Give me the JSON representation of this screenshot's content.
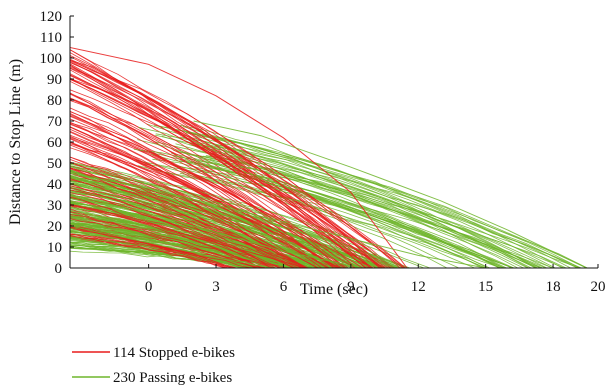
{
  "chart_data": {
    "type": "line",
    "title": "",
    "xlabel": "Time (sec)",
    "ylabel": "Distance to Stop Line (m)",
    "xlim": [
      -3.5,
      20
    ],
    "ylim": [
      0,
      120
    ],
    "xticks": [
      0,
      3,
      6,
      9,
      12,
      15,
      18,
      20
    ],
    "yticks": [
      0,
      10,
      20,
      30,
      40,
      50,
      60,
      70,
      80,
      90,
      100,
      110,
      120
    ],
    "grid": false,
    "legend_position": "bottom",
    "series": [
      {
        "name": "114 Stopped e-bikes",
        "color": "#e81c1c",
        "count": 114,
        "start_y_range": [
          15,
          105
        ],
        "end_x_range": [
          4,
          11.5
        ]
      },
      {
        "name": "230 Passing e-bikes",
        "color": "#6fb52c",
        "count": 230,
        "start_y_range": [
          8,
          70
        ],
        "end_x_range": [
          5,
          19.5
        ]
      }
    ],
    "representative_lines": {
      "stopped": [
        {
          "x": [
            -3.5,
            0,
            3,
            6,
            9,
            11.5
          ],
          "y": [
            105,
            97,
            82,
            62,
            36,
            0
          ]
        },
        {
          "x": [
            -3.5,
            0,
            3,
            6,
            9,
            10.5
          ],
          "y": [
            92,
            75,
            52,
            30,
            10,
            0
          ]
        },
        {
          "x": [
            -3.5,
            0,
            3,
            6,
            8.5
          ],
          "y": [
            60,
            45,
            30,
            15,
            0
          ]
        },
        {
          "x": [
            -3.5,
            0,
            3,
            6,
            7
          ],
          "y": [
            30,
            21,
            12,
            3,
            0
          ]
        }
      ],
      "passing": [
        {
          "x": [
            2,
            5,
            9,
            13,
            16,
            19.5
          ],
          "y": [
            70,
            63,
            48,
            32,
            18,
            0
          ]
        },
        {
          "x": [
            -3.5,
            0,
            3,
            6,
            9,
            12,
            15
          ],
          "y": [
            45,
            38,
            30,
            22,
            14,
            6,
            0
          ]
        },
        {
          "x": [
            -3.5,
            0,
            3,
            6,
            9.5
          ],
          "y": [
            35,
            26,
            17,
            8,
            0
          ]
        },
        {
          "x": [
            -3.5,
            0,
            3,
            5.5
          ],
          "y": [
            20,
            12,
            5,
            0
          ]
        }
      ]
    }
  }
}
